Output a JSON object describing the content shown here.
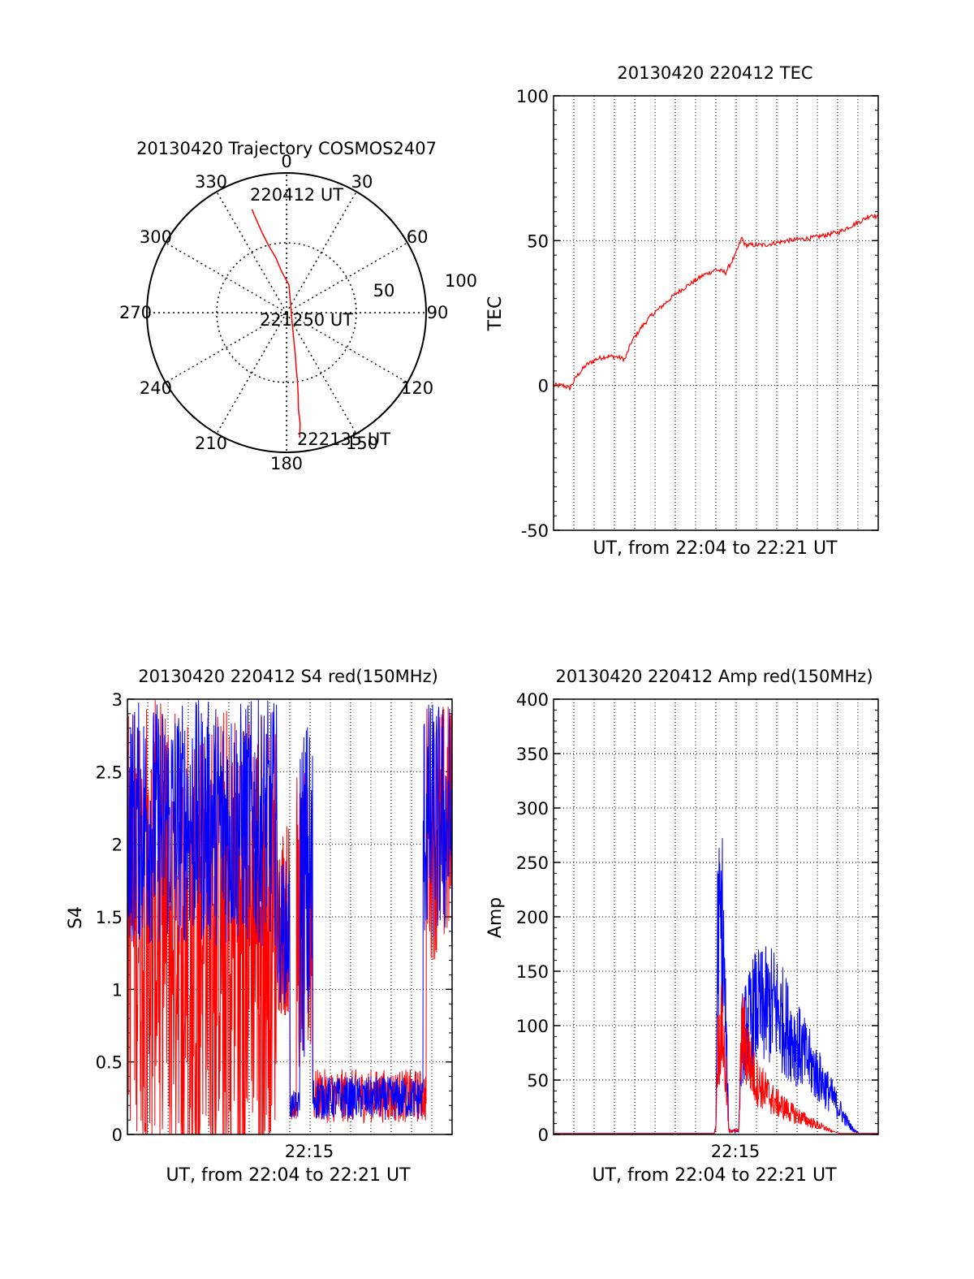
{
  "colors": {
    "red": "#ff0000",
    "blue": "#0000ff",
    "axis": "#000000",
    "grid": "#000000"
  },
  "chart_data": [
    {
      "id": "trajectory",
      "type": "polar",
      "title": "20130420 Trajectory COSMOS2407",
      "azimuth_labels": [
        "0",
        "30",
        "60",
        "90",
        "120",
        "150",
        "180",
        "210",
        "240",
        "270",
        "300",
        "330"
      ],
      "radial_labels": [
        "50",
        "100"
      ],
      "rlim": [
        0,
        100
      ],
      "grid": true,
      "track_labels": [
        "220412 UT",
        "221250 UT",
        "222135 UT"
      ],
      "series": [
        {
          "color": "red",
          "points_az_r": [
            [
              -18.5,
              78
            ],
            [
              -18,
              70
            ],
            [
              -17,
              60
            ],
            [
              -15,
              50
            ],
            [
              -11,
              40
            ],
            [
              -7,
              30
            ],
            [
              5,
              20
            ],
            [
              150,
              8
            ],
            [
              165,
              20
            ],
            [
              168,
              30
            ],
            [
              170,
              40
            ],
            [
              171,
              50
            ],
            [
              172,
              60
            ],
            [
              173,
              70
            ],
            [
              173,
              80
            ],
            [
              174,
              90
            ]
          ]
        }
      ]
    },
    {
      "id": "tec",
      "type": "line",
      "title": "20130420 220412 TEC",
      "xlabel": "UT, from 22:04 to 22:21 UT",
      "ylabel": "TEC",
      "xlim": [
        0,
        1
      ],
      "ylim": [
        -50,
        100
      ],
      "yticks": [
        "100",
        "50",
        "0",
        "-50"
      ],
      "ytick_values": [
        100,
        50,
        0,
        -50
      ],
      "grid": true,
      "series": [
        {
          "color": "red",
          "points": [
            [
              0,
              0
            ],
            [
              0.03,
              0
            ],
            [
              0.05,
              -1
            ],
            [
              0.07,
              3
            ],
            [
              0.1,
              7
            ],
            [
              0.13,
              9
            ],
            [
              0.16,
              10
            ],
            [
              0.19,
              10
            ],
            [
              0.22,
              9
            ],
            [
              0.24,
              15
            ],
            [
              0.27,
              20
            ],
            [
              0.3,
              24
            ],
            [
              0.34,
              28
            ],
            [
              0.38,
              32
            ],
            [
              0.42,
              35
            ],
            [
              0.46,
              38
            ],
            [
              0.5,
              40
            ],
            [
              0.53,
              39
            ],
            [
              0.56,
              45
            ],
            [
              0.58,
              51
            ],
            [
              0.59,
              48.5
            ],
            [
              0.65,
              48.5
            ],
            [
              0.72,
              50
            ],
            [
              0.8,
              51
            ],
            [
              0.88,
              53
            ],
            [
              0.95,
              57
            ],
            [
              0.98,
              59
            ],
            [
              1.0,
              58
            ]
          ]
        }
      ]
    },
    {
      "id": "s4",
      "type": "line",
      "title": "20130420 220412 S4 red(150MHz)",
      "xlabel": "UT, from 22:04 to 22:21 UT",
      "ylabel": "S4",
      "xticks": [
        "22:15"
      ],
      "xtick_values": [
        0.58
      ],
      "xlim": [
        0,
        1
      ],
      "ylim": [
        0,
        3
      ],
      "yticks": [
        "3",
        "2.5",
        "2",
        "1.5",
        "1",
        "0.5",
        "0"
      ],
      "ytick_values": [
        3,
        2.5,
        2,
        1.5,
        1,
        0.5,
        0
      ],
      "grid": true,
      "series": [
        {
          "color": "red",
          "regime": "noisy",
          "segments": [
            [
              0,
              0.46,
              0,
              3
            ],
            [
              0.46,
              0.5,
              0.8,
              2.2
            ],
            [
              0.5,
              0.52,
              0.1,
              0.3
            ],
            [
              0.52,
              0.57,
              0.4,
              2.5
            ],
            [
              0.57,
              0.92,
              0.08,
              0.45
            ],
            [
              0.92,
              1.0,
              1.2,
              3
            ]
          ]
        },
        {
          "color": "blue",
          "regime": "noisy",
          "segments": [
            [
              0,
              0.46,
              1.3,
              3
            ],
            [
              0.46,
              0.5,
              0.9,
              1.9
            ],
            [
              0.5,
              0.53,
              0.1,
              0.3
            ],
            [
              0.53,
              0.57,
              0.5,
              2.9
            ],
            [
              0.57,
              0.91,
              0.1,
              0.4
            ],
            [
              0.91,
              1.0,
              1.3,
              3
            ]
          ]
        }
      ]
    },
    {
      "id": "amp",
      "type": "line",
      "title": "20130420 220412 Amp red(150MHz)",
      "xlabel": "UT, from 22:04 to 22:21 UT",
      "ylabel": "Amp",
      "xticks": [
        "22:15"
      ],
      "xtick_values": [
        0.58
      ],
      "xlim": [
        0,
        1
      ],
      "ylim": [
        0,
        400
      ],
      "yticks": [
        "400",
        "350",
        "300",
        "250",
        "200",
        "150",
        "100",
        "50",
        "0"
      ],
      "ytick_values": [
        400,
        350,
        300,
        250,
        200,
        150,
        100,
        50,
        0
      ],
      "grid": true,
      "series": [
        {
          "color": "blue",
          "envelope": [
            [
              0,
              1
            ],
            [
              0.495,
              1
            ],
            [
              0.5,
              10
            ],
            [
              0.505,
              265
            ],
            [
              0.52,
              288
            ],
            [
              0.53,
              150
            ],
            [
              0.54,
              5
            ],
            [
              0.57,
              5
            ],
            [
              0.58,
              130
            ],
            [
              0.62,
              170
            ],
            [
              0.68,
              175
            ],
            [
              0.74,
              130
            ],
            [
              0.8,
              90
            ],
            [
              0.86,
              50
            ],
            [
              0.9,
              20
            ],
            [
              0.92,
              8
            ],
            [
              0.94,
              1
            ],
            [
              1,
              1
            ]
          ]
        },
        {
          "color": "red",
          "envelope": [
            [
              0,
              1
            ],
            [
              0.495,
              1
            ],
            [
              0.5,
              10
            ],
            [
              0.505,
              115
            ],
            [
              0.52,
              145
            ],
            [
              0.53,
              80
            ],
            [
              0.54,
              5
            ],
            [
              0.57,
              5
            ],
            [
              0.58,
              140
            ],
            [
              0.62,
              75
            ],
            [
              0.68,
              45
            ],
            [
              0.74,
              28
            ],
            [
              0.8,
              15
            ],
            [
              0.84,
              8
            ],
            [
              0.86,
              3
            ],
            [
              0.88,
              1
            ],
            [
              1,
              1
            ]
          ]
        }
      ]
    }
  ]
}
